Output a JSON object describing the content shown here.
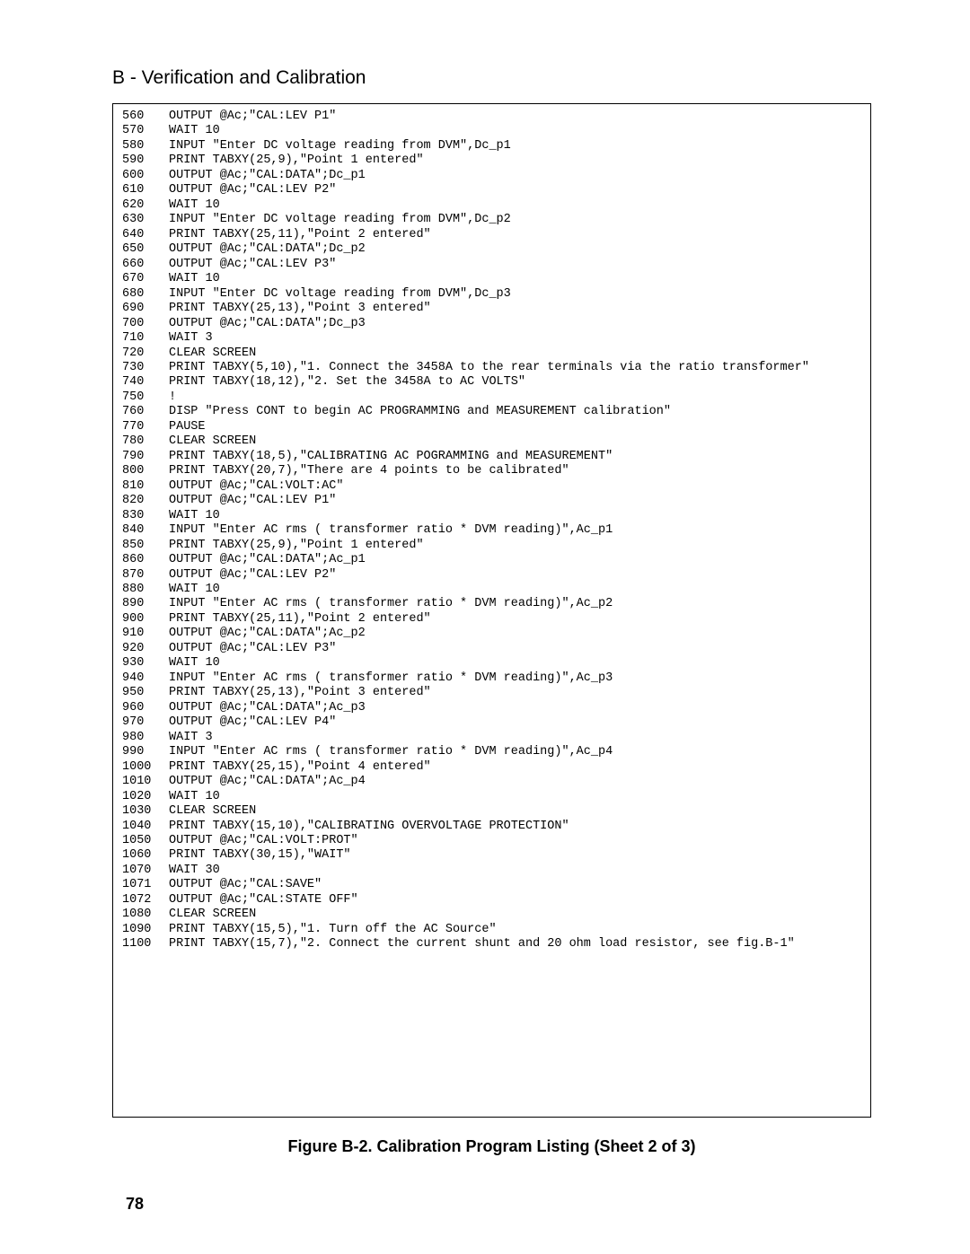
{
  "section_title": "B - Verification and Calibration",
  "figure_caption": "Figure B-2. Calibration Program Listing (Sheet 2 of 3)",
  "page_number": "78",
  "code_lines": [
    {
      "ln": "560",
      "txt": "OUTPUT @Ac;\"CAL:LEV P1\""
    },
    {
      "ln": "570",
      "txt": "WAIT 10"
    },
    {
      "ln": "580",
      "txt": "INPUT \"Enter DC voltage reading from DVM\",Dc_p1"
    },
    {
      "ln": "590",
      "txt": "PRINT TABXY(25,9),\"Point 1 entered\""
    },
    {
      "ln": "600",
      "txt": "OUTPUT @Ac;\"CAL:DATA\";Dc_p1"
    },
    {
      "ln": "610",
      "txt": "OUTPUT @Ac;\"CAL:LEV P2\""
    },
    {
      "ln": "620",
      "txt": "WAIT 10"
    },
    {
      "ln": "630",
      "txt": "INPUT \"Enter DC voltage reading from DVM\",Dc_p2"
    },
    {
      "ln": "640",
      "txt": "PRINT TABXY(25,11),\"Point 2 entered\""
    },
    {
      "ln": "650",
      "txt": "OUTPUT @Ac;\"CAL:DATA\";Dc_p2"
    },
    {
      "ln": "660",
      "txt": "OUTPUT @Ac;\"CAL:LEV P3\""
    },
    {
      "ln": "670",
      "txt": "WAIT 10"
    },
    {
      "ln": "680",
      "txt": "INPUT \"Enter DC voltage reading from DVM\",Dc_p3"
    },
    {
      "ln": "690",
      "txt": "PRINT TABXY(25,13),\"Point 3 entered\""
    },
    {
      "ln": "700",
      "txt": "OUTPUT @Ac;\"CAL:DATA\";Dc_p3"
    },
    {
      "ln": "710",
      "txt": "WAIT 3"
    },
    {
      "ln": "720",
      "txt": "CLEAR SCREEN"
    },
    {
      "ln": "730",
      "txt": "PRINT TABXY(5,10),\"1. Connect the 3458A to the rear terminals via the ratio transformer\""
    },
    {
      "ln": "740",
      "txt": "PRINT TABXY(18,12),\"2. Set the 3458A to AC VOLTS\""
    },
    {
      "ln": "750",
      "txt": "!"
    },
    {
      "ln": "760",
      "txt": "DISP \"Press CONT to begin AC PROGRAMMING and MEASUREMENT calibration\""
    },
    {
      "ln": "770",
      "txt": "PAUSE"
    },
    {
      "ln": "780",
      "txt": "CLEAR SCREEN"
    },
    {
      "ln": "790",
      "txt": "PRINT TABXY(18,5),\"CALIBRATING AC POGRAMMING and MEASUREMENT\""
    },
    {
      "ln": "800",
      "txt": "PRINT TABXY(20,7),\"There are 4 points to be calibrated\""
    },
    {
      "ln": "810",
      "txt": "OUTPUT @Ac;\"CAL:VOLT:AC\""
    },
    {
      "ln": "820",
      "txt": "OUTPUT @Ac;\"CAL:LEV P1\""
    },
    {
      "ln": "830",
      "txt": "WAIT 10"
    },
    {
      "ln": "840",
      "txt": "INPUT \"Enter AC rms ( transformer ratio * DVM reading)\",Ac_p1"
    },
    {
      "ln": "850",
      "txt": "PRINT TABXY(25,9),\"Point 1 entered\""
    },
    {
      "ln": "860",
      "txt": "OUTPUT @Ac;\"CAL:DATA\";Ac_p1"
    },
    {
      "ln": "870",
      "txt": "OUTPUT @Ac;\"CAL:LEV P2\""
    },
    {
      "ln": "880",
      "txt": "WAIT 10"
    },
    {
      "ln": "890",
      "txt": "INPUT \"Enter AC rms ( transformer ratio * DVM reading)\",Ac_p2"
    },
    {
      "ln": "900",
      "txt": "PRINT TABXY(25,11),\"Point 2 entered\""
    },
    {
      "ln": "910",
      "txt": "OUTPUT @Ac;\"CAL:DATA\";Ac_p2"
    },
    {
      "ln": "920",
      "txt": "OUTPUT @Ac;\"CAL:LEV P3\""
    },
    {
      "ln": "930",
      "txt": "WAIT 10"
    },
    {
      "ln": "940",
      "txt": "INPUT \"Enter AC rms ( transformer ratio * DVM reading)\",Ac_p3"
    },
    {
      "ln": "950",
      "txt": "PRINT TABXY(25,13),\"Point 3 entered\""
    },
    {
      "ln": "960",
      "txt": "OUTPUT @Ac;\"CAL:DATA\";Ac_p3"
    },
    {
      "ln": "970",
      "txt": "OUTPUT @Ac;\"CAL:LEV P4\""
    },
    {
      "ln": "980",
      "txt": "WAIT 3"
    },
    {
      "ln": "990",
      "txt": "INPUT \"Enter AC rms ( transformer ratio * DVM reading)\",Ac_p4"
    },
    {
      "ln": "1000",
      "txt": "PRINT TABXY(25,15),\"Point 4 entered\""
    },
    {
      "ln": "1010",
      "txt": "OUTPUT @Ac;\"CAL:DATA\";Ac_p4"
    },
    {
      "ln": "1020",
      "txt": "WAIT 10"
    },
    {
      "ln": "1030",
      "txt": "CLEAR SCREEN"
    },
    {
      "ln": "1040",
      "txt": "PRINT TABXY(15,10),\"CALIBRATING OVERVOLTAGE PROTECTION\""
    },
    {
      "ln": "1050",
      "txt": "OUTPUT @Ac;\"CAL:VOLT:PROT\""
    },
    {
      "ln": "1060",
      "txt": "PRINT TABXY(30,15),\"WAIT\""
    },
    {
      "ln": "1070",
      "txt": "WAIT 30"
    },
    {
      "ln": "1071",
      "txt": "OUTPUT @Ac;\"CAL:SAVE\""
    },
    {
      "ln": "1072",
      "txt": "OUTPUT @Ac;\"CAL:STATE OFF\""
    },
    {
      "ln": "1080",
      "txt": "CLEAR SCREEN"
    },
    {
      "ln": "1090",
      "txt": "PRINT TABXY(15,5),\"1. Turn off the AC Source\""
    },
    {
      "ln": "1100",
      "txt": "PRINT TABXY(15,7),\"2. Connect the current shunt and 20 ohm load resistor, see fig.B-1\""
    }
  ]
}
